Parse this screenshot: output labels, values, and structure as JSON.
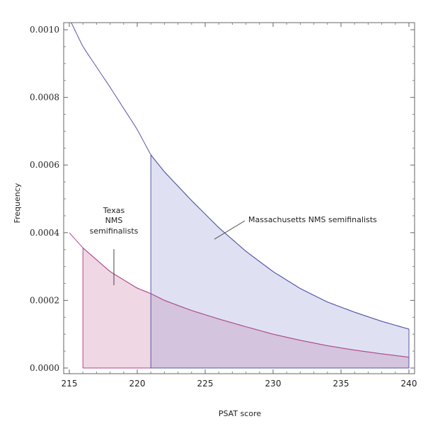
{
  "chart_data": {
    "type": "area",
    "title": "",
    "xlabel": "PSAT score",
    "ylabel": "Frequency",
    "xlim": [
      215,
      240
    ],
    "ylim": [
      0,
      0.00102
    ],
    "x_ticks": [
      "215",
      "220",
      "225",
      "230",
      "235",
      "240"
    ],
    "y_ticks": [
      "0.0000",
      "0.0002",
      "0.0004",
      "0.0006",
      "0.0008",
      "0.0010"
    ],
    "grid": false,
    "series": [
      {
        "name": "Texas NMS semifinalists",
        "curve": {
          "x": [
            215,
            216,
            218,
            220,
            221,
            222,
            224,
            226,
            228,
            230,
            232,
            234,
            236,
            238,
            240
          ],
          "y": [
            0.0004,
            0.000355,
            0.000285,
            0.000236,
            0.00022,
            0.0002,
            0.00017,
            0.000145,
            0.000122,
            0.0001,
            8.2e-05,
            6.6e-05,
            5.3e-05,
            4.2e-05,
            3.2e-05
          ]
        },
        "shaded_from": 216,
        "shaded_to": 240,
        "line_color": "#b0488a",
        "fill_color": "#c8709e"
      },
      {
        "name": "Massachusetts NMS semifinalists",
        "curve": {
          "x": [
            215.15,
            216,
            218,
            220,
            221,
            222,
            224,
            226,
            228,
            230,
            232,
            234,
            236,
            238,
            240
          ],
          "y": [
            0.00102,
            0.00095,
            0.00083,
            0.000705,
            0.00063,
            0.00058,
            0.000495,
            0.000415,
            0.000345,
            0.000285,
            0.000235,
            0.000195,
            0.000165,
            0.000138,
            0.000115
          ]
        },
        "shaded_from": 221,
        "shaded_to": 240,
        "line_color": "#5557a8",
        "fill_color": "#8d92cf"
      }
    ],
    "annotations": {
      "texas": [
        "Texas",
        "NMS",
        "semifinalists"
      ],
      "massachusetts": "Massachusetts NMS semifinalists"
    }
  }
}
